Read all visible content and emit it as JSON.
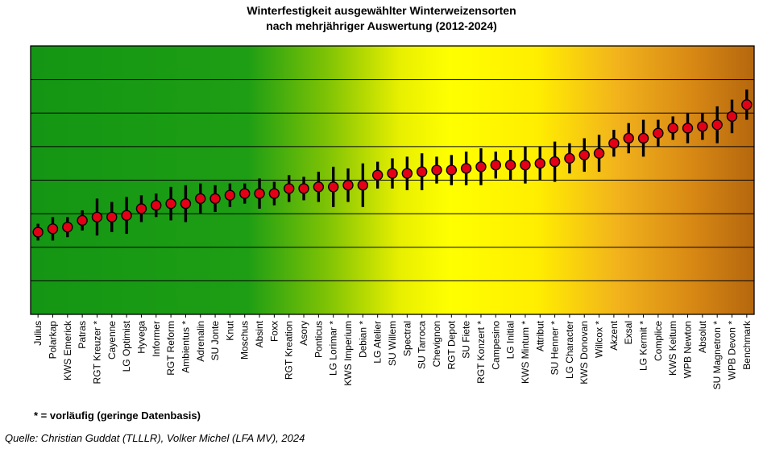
{
  "title": {
    "line1": "Winterfestigkeit ausgewählter Winterweizensorten",
    "line2": "nach mehrjähriger Auswertung (2012-2024)"
  },
  "footnote": "* = vorläufig (geringe Datenbasis)",
  "source": "Quelle: Christian Guddat (TLLLR), Volker Michel (LFA MV), 2024",
  "chart_data": {
    "type": "scatter",
    "title": "Winterfestigkeit ausgewählter Winterweizensorten nach mehrjähriger Auswertung (2012-2024)",
    "xlabel": "",
    "ylabel": "",
    "ylim": [
      0,
      8
    ],
    "grid": true,
    "grid_step": 1,
    "legend": "none",
    "point_color": "#e30017",
    "point_stroke": "#000000",
    "errorbar_color": "#000000",
    "background_gradient": [
      {
        "offset": "0%",
        "color": "#149614"
      },
      {
        "offset": "30%",
        "color": "#1e9e14"
      },
      {
        "offset": "41%",
        "color": "#7fc305"
      },
      {
        "offset": "51%",
        "color": "#e8ef00"
      },
      {
        "offset": "58%",
        "color": "#ffff00"
      },
      {
        "offset": "70%",
        "color": "#ffee00"
      },
      {
        "offset": "81%",
        "color": "#f2b31c"
      },
      {
        "offset": "91%",
        "color": "#d98a14"
      },
      {
        "offset": "100%",
        "color": "#b5670e"
      }
    ],
    "categories": [
      "Julius",
      "Polarkap",
      "KWS Emerick",
      "Patras",
      "RGT Kreuzer *",
      "Cayenne",
      "LG Optimist",
      "Hyvega",
      "Informer",
      "RGT Reform",
      "Ambientus *",
      "Adrenalin",
      "SU Jonte",
      "Knut",
      "Moschus",
      "Absint",
      "Foxx",
      "RGT Kreation",
      "Asory",
      "Ponticus",
      "LG Lorimar *",
      "KWS Imperium",
      "Debian *",
      "LG Atelier",
      "SU Willem",
      "Spectral",
      "SU Tarroca",
      "Chevignon",
      "RGT Depot",
      "SU Fiete",
      "RGT Konzert *",
      "Campesino",
      "LG Initial",
      "KWS Mintum *",
      "Attribut",
      "SU Henner *",
      "LG Character",
      "KWS Donovan",
      "Willcox *",
      "Akzent",
      "Exsal",
      "LG Kermit *",
      "Complice",
      "KWS Keitum",
      "WPB Newton",
      "Absolut",
      "SU Magnetron *",
      "WPB Devon *",
      "Benchmark"
    ],
    "values": [
      2.45,
      2.55,
      2.6,
      2.8,
      2.9,
      2.9,
      2.95,
      3.15,
      3.25,
      3.3,
      3.3,
      3.45,
      3.45,
      3.55,
      3.6,
      3.6,
      3.6,
      3.75,
      3.75,
      3.8,
      3.8,
      3.85,
      3.85,
      4.15,
      4.2,
      4.2,
      4.25,
      4.3,
      4.3,
      4.35,
      4.4,
      4.45,
      4.45,
      4.45,
      4.5,
      4.55,
      4.65,
      4.75,
      4.8,
      5.1,
      5.25,
      5.25,
      5.4,
      5.55,
      5.55,
      5.6,
      5.65,
      5.9,
      6.25
    ],
    "err_low": [
      2.2,
      2.2,
      2.3,
      2.5,
      2.35,
      2.45,
      2.4,
      2.75,
      2.9,
      2.8,
      2.75,
      3.0,
      3.05,
      3.2,
      3.3,
      3.15,
      3.25,
      3.35,
      3.4,
      3.35,
      3.2,
      3.35,
      3.2,
      3.75,
      3.75,
      3.7,
      3.7,
      3.9,
      3.85,
      3.85,
      3.85,
      4.05,
      4.0,
      3.9,
      4.0,
      3.95,
      4.2,
      4.25,
      4.25,
      4.7,
      4.8,
      4.7,
      5.0,
      5.2,
      5.1,
      5.2,
      5.1,
      5.4,
      5.8
    ],
    "err_high": [
      2.7,
      2.9,
      2.9,
      3.1,
      3.45,
      3.35,
      3.5,
      3.55,
      3.6,
      3.8,
      3.85,
      3.9,
      3.85,
      3.9,
      3.9,
      4.05,
      3.95,
      4.15,
      4.1,
      4.25,
      4.4,
      4.35,
      4.5,
      4.55,
      4.65,
      4.7,
      4.8,
      4.7,
      4.75,
      4.85,
      4.95,
      4.85,
      4.9,
      5.0,
      5.0,
      5.15,
      5.1,
      5.25,
      5.35,
      5.5,
      5.7,
      5.8,
      5.8,
      5.9,
      6.0,
      6.0,
      6.2,
      6.4,
      6.7
    ]
  }
}
